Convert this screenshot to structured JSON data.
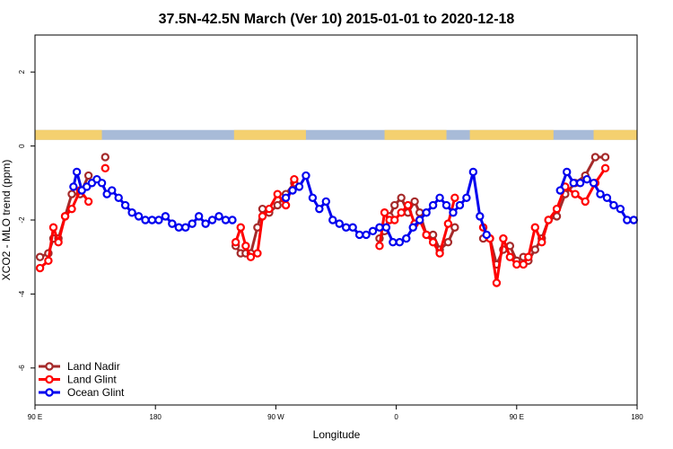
{
  "chart_data": {
    "type": "line",
    "title": "37.5N-42.5N March (Ver 10)   2015-01-01 to 2020-12-18",
    "xlabel": "Longitude",
    "ylabel": "XCO2 - MLO trend (ppm)",
    "xlim": [
      90,
      450
    ],
    "ylim": [
      -7.0,
      3.0
    ],
    "x_ticks": [
      {
        "value": 90,
        "label": "90 E"
      },
      {
        "value": 162,
        "label": "180"
      },
      {
        "value": 234,
        "label": "90 W"
      },
      {
        "value": 306,
        "label": "0"
      },
      {
        "value": 378,
        "label": "90 E"
      },
      {
        "value": 450,
        "label": "180"
      }
    ],
    "y_ticks": [
      2,
      0,
      -2,
      -4,
      -6
    ],
    "legend_position": "bottom-left",
    "land_mask": {
      "y": 0.3,
      "land_color": "#f4d06f",
      "ocean_color": "#a8bbd8",
      "land_ranges": [
        [
          90,
          130
        ],
        [
          209,
          252
        ],
        [
          299,
          336
        ],
        [
          350,
          400
        ],
        [
          424,
          450
        ]
      ]
    },
    "series": [
      {
        "name": "Land Nadir",
        "color": "#a52a2a",
        "x": [
          93,
          98,
          101,
          104,
          108,
          112,
          117,
          122,
          132,
          210,
          213,
          216,
          219,
          223,
          226,
          230,
          235,
          240,
          245,
          296,
          299,
          302,
          305,
          309,
          313,
          317,
          320,
          324,
          328,
          332,
          337,
          341,
          358,
          362,
          366,
          370,
          374,
          378,
          382,
          385,
          389,
          393,
          397,
          402,
          407,
          413,
          419,
          425,
          431
        ],
        "y": [
          -3.0,
          -2.9,
          -2.5,
          -2.5,
          -1.9,
          -1.3,
          -1.3,
          -0.8,
          -0.3,
          -2.7,
          -2.9,
          -2.9,
          -2.9,
          -2.2,
          -1.7,
          -1.8,
          -1.6,
          -1.3,
          -1.0,
          -2.5,
          -2.3,
          -1.9,
          -1.6,
          -1.4,
          -1.8,
          -1.5,
          -1.8,
          -2.4,
          -2.4,
          -2.8,
          -2.6,
          -2.2,
          -2.5,
          -2.5,
          -3.2,
          -2.8,
          -2.7,
          -3.1,
          -3.0,
          -3.1,
          -2.8,
          -2.5,
          -2.0,
          -1.9,
          -1.3,
          -1.0,
          -0.8,
          -0.3,
          -0.3
        ]
      },
      {
        "name": "Land Glint",
        "color": "#ff0000",
        "x": [
          93,
          98,
          101,
          104,
          108,
          112,
          117,
          122,
          132,
          210,
          213,
          216,
          219,
          223,
          226,
          230,
          235,
          240,
          245,
          296,
          299,
          302,
          305,
          309,
          313,
          317,
          320,
          324,
          328,
          332,
          337,
          341,
          358,
          362,
          366,
          370,
          374,
          378,
          382,
          385,
          389,
          393,
          397,
          402,
          407,
          413,
          419,
          425,
          431
        ],
        "y": [
          -3.3,
          -3.1,
          -2.2,
          -2.6,
          -1.9,
          -1.7,
          -1.2,
          -1.5,
          -0.6,
          -2.6,
          -2.2,
          -2.7,
          -3.0,
          -2.9,
          -1.9,
          -1.7,
          -1.3,
          -1.6,
          -0.9,
          -2.7,
          -1.8,
          -2.0,
          -2.0,
          -1.8,
          -1.6,
          -2.1,
          -2.0,
          -2.4,
          -2.6,
          -2.9,
          -2.1,
          -1.4,
          -2.2,
          -2.5,
          -3.7,
          -2.5,
          -3.0,
          -3.2,
          -3.2,
          -3.0,
          -2.2,
          -2.6,
          -2.0,
          -1.7,
          -1.1,
          -1.3,
          -1.5,
          -1.0,
          -0.6
        ]
      },
      {
        "name": "Ocean Glint",
        "color": "#0000ee",
        "x": [
          113,
          115,
          118,
          121,
          124,
          127,
          130,
          133,
          136,
          140,
          144,
          148,
          152,
          156,
          160,
          164,
          168,
          172,
          176,
          180,
          184,
          188,
          192,
          196,
          200,
          204,
          208,
          240,
          244,
          248,
          252,
          256,
          260,
          264,
          268,
          272,
          276,
          280,
          284,
          288,
          292,
          296,
          300,
          304,
          308,
          312,
          316,
          320,
          324,
          328,
          332,
          336,
          340,
          344,
          348,
          352,
          356,
          360,
          404,
          408,
          412,
          416,
          420,
          424,
          428,
          432,
          436,
          440,
          444,
          448
        ],
        "y": [
          -1.1,
          -0.7,
          -1.2,
          -1.1,
          -1.0,
          -0.9,
          -1.0,
          -1.3,
          -1.2,
          -1.4,
          -1.6,
          -1.8,
          -1.9,
          -2.0,
          -2.0,
          -2.0,
          -1.9,
          -2.1,
          -2.2,
          -2.2,
          -2.1,
          -1.9,
          -2.1,
          -2.0,
          -1.9,
          -2.0,
          -2.0,
          -1.4,
          -1.2,
          -1.1,
          -0.8,
          -1.4,
          -1.7,
          -1.5,
          -2.0,
          -2.1,
          -2.2,
          -2.2,
          -2.4,
          -2.4,
          -2.3,
          -2.2,
          -2.2,
          -2.6,
          -2.6,
          -2.5,
          -2.2,
          -2.0,
          -1.8,
          -1.6,
          -1.4,
          -1.6,
          -1.8,
          -1.6,
          -1.4,
          -0.7,
          -1.9,
          -2.4,
          -1.2,
          -0.7,
          -1.0,
          -1.0,
          -0.9,
          -1.0,
          -1.3,
          -1.4,
          -1.6,
          -1.7,
          -2.0,
          -2.0
        ]
      }
    ]
  }
}
